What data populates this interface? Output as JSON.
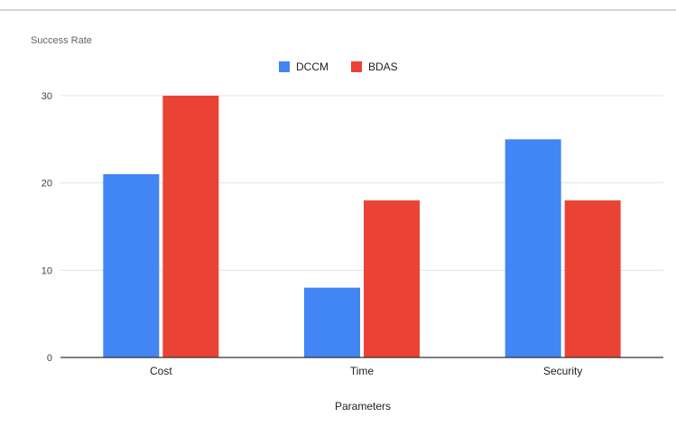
{
  "chart_data": {
    "type": "bar",
    "ylabel": "Success Rate",
    "xlabel": "Parameters",
    "categories": [
      "Cost",
      "Time",
      "Security"
    ],
    "series": [
      {
        "name": "DCCM",
        "color": "#4285f4",
        "values": [
          21,
          8,
          25
        ]
      },
      {
        "name": "BDAS",
        "color": "#ea4335",
        "values": [
          30,
          18,
          18
        ]
      }
    ],
    "ylim": [
      0,
      30
    ],
    "yticks": [
      0,
      10,
      20,
      30
    ],
    "grid": true,
    "legend_position": "top-center"
  }
}
